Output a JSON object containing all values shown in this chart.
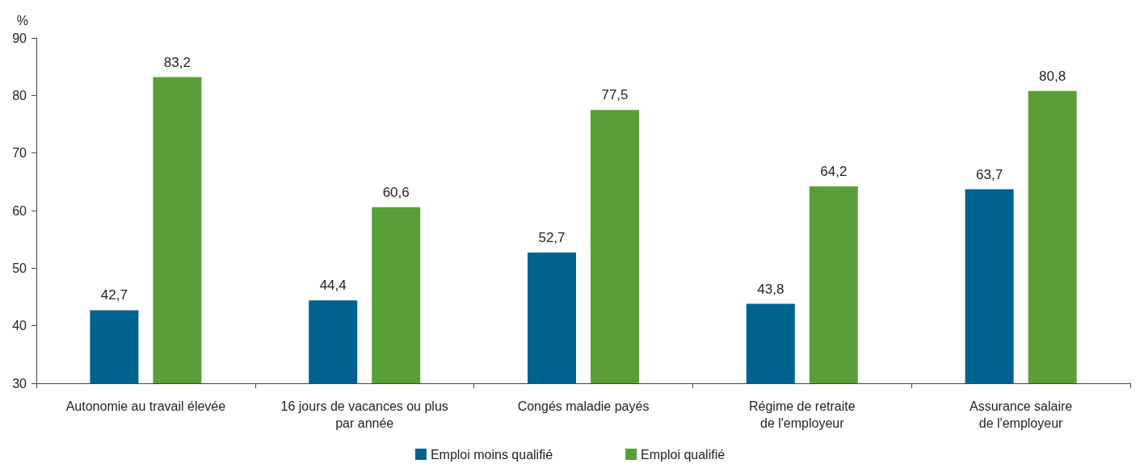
{
  "chart_data": {
    "type": "bar",
    "ylabel": "%",
    "categories": [
      "Autonomie au travail élevée",
      "16 jours de vacances ou plus\npar année",
      "Congés maladie payés",
      "Régime de retraite\nde l'employeur",
      "Assurance salaire\nde l'employeur"
    ],
    "series": [
      {
        "name": "Emploi moins qualifié",
        "color": "#00628f",
        "values": [
          42.7,
          44.4,
          52.7,
          43.8,
          63.7
        ],
        "value_labels": [
          "42,7",
          "44,4",
          "52,7",
          "43,8",
          "63,7"
        ]
      },
      {
        "name": "Emploi qualifié",
        "color": "#5a9e38",
        "values": [
          83.2,
          60.6,
          77.5,
          64.2,
          80.8
        ],
        "value_labels": [
          "83,2",
          "60,6",
          "77,5",
          "64,2",
          "80,8"
        ]
      }
    ],
    "ylim": [
      30,
      90
    ],
    "yticks": [
      30,
      40,
      50,
      60,
      70,
      80,
      90
    ],
    "grid": false,
    "legend": "bottom"
  }
}
